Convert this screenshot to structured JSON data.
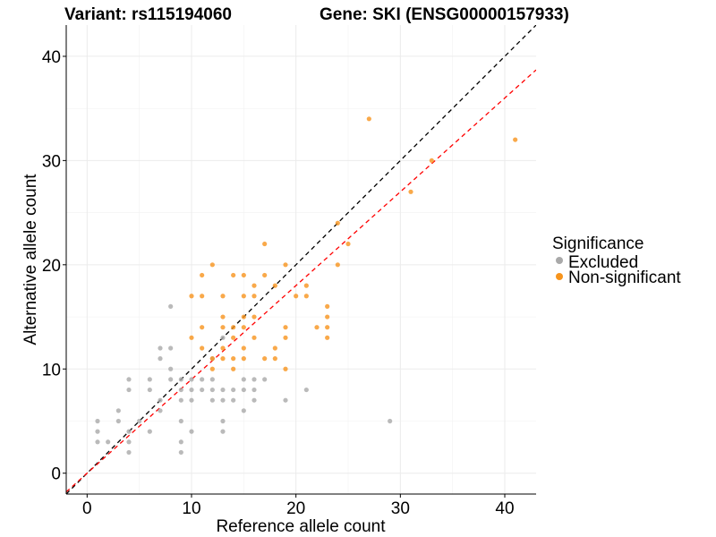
{
  "chart_data": {
    "type": "scatter",
    "title_left": "Variant: rs115194060",
    "title_right": "Gene: SKI (ENSG00000157933)",
    "xlabel": "Reference allele count",
    "ylabel": "Alternative allele count",
    "xlim": [
      -2,
      43
    ],
    "ylim": [
      -2,
      43
    ],
    "xticks": [
      0,
      10,
      20,
      30,
      40
    ],
    "yticks": [
      0,
      10,
      20,
      30,
      40
    ],
    "grid": true,
    "legend": {
      "title": "Significance",
      "placement": "right",
      "entries": [
        {
          "label": "Excluded",
          "color": "#a9a9a9"
        },
        {
          "label": "Non-significant",
          "color": "#f7941d"
        }
      ]
    },
    "reference_lines": [
      {
        "slope": 1.0,
        "intercept": 0,
        "color": "#000000",
        "style": "dashed"
      },
      {
        "slope": 0.9,
        "intercept": 0,
        "color": "#ff0000",
        "style": "dashed"
      }
    ],
    "series": [
      {
        "name": "Excluded",
        "color": "#a9a9a9",
        "points": [
          [
            1,
            3
          ],
          [
            1,
            4
          ],
          [
            1,
            5
          ],
          [
            2,
            3
          ],
          [
            3,
            5
          ],
          [
            3,
            6
          ],
          [
            4,
            2
          ],
          [
            4,
            3
          ],
          [
            4,
            4
          ],
          [
            4,
            8
          ],
          [
            4,
            9
          ],
          [
            5,
            5
          ],
          [
            6,
            4
          ],
          [
            6,
            8
          ],
          [
            6,
            9
          ],
          [
            7,
            6
          ],
          [
            7,
            7
          ],
          [
            7,
            11
          ],
          [
            7,
            12
          ],
          [
            8,
            9
          ],
          [
            8,
            10
          ],
          [
            8,
            12
          ],
          [
            8,
            16
          ],
          [
            9,
            2
          ],
          [
            9,
            3
          ],
          [
            9,
            5
          ],
          [
            9,
            7
          ],
          [
            9,
            8
          ],
          [
            9,
            9
          ],
          [
            10,
            4
          ],
          [
            10,
            7
          ],
          [
            10,
            8
          ],
          [
            10,
            9
          ],
          [
            11,
            8
          ],
          [
            11,
            9
          ],
          [
            12,
            7
          ],
          [
            12,
            8
          ],
          [
            12,
            9
          ],
          [
            12,
            11
          ],
          [
            13,
            4
          ],
          [
            13,
            5
          ],
          [
            13,
            7
          ],
          [
            13,
            8
          ],
          [
            13,
            13
          ],
          [
            14,
            7
          ],
          [
            14,
            8
          ],
          [
            15,
            6
          ],
          [
            15,
            8
          ],
          [
            15,
            9
          ],
          [
            16,
            7
          ],
          [
            16,
            8
          ],
          [
            16,
            9
          ],
          [
            17,
            9
          ],
          [
            19,
            7
          ],
          [
            21,
            8
          ],
          [
            29,
            5
          ]
        ]
      },
      {
        "name": "Non-significant",
        "color": "#f7941d",
        "points": [
          [
            10,
            13
          ],
          [
            10,
            17
          ],
          [
            11,
            12
          ],
          [
            11,
            14
          ],
          [
            11,
            17
          ],
          [
            11,
            19
          ],
          [
            12,
            10
          ],
          [
            12,
            11
          ],
          [
            12,
            20
          ],
          [
            13,
            11
          ],
          [
            13,
            12
          ],
          [
            13,
            14
          ],
          [
            13,
            15
          ],
          [
            13,
            17
          ],
          [
            14,
            10
          ],
          [
            14,
            11
          ],
          [
            14,
            13
          ],
          [
            14,
            14
          ],
          [
            14,
            19
          ],
          [
            15,
            11
          ],
          [
            15,
            12
          ],
          [
            15,
            14
          ],
          [
            15,
            15
          ],
          [
            15,
            17
          ],
          [
            15,
            19
          ],
          [
            16,
            13
          ],
          [
            16,
            15
          ],
          [
            16,
            17
          ],
          [
            16,
            18
          ],
          [
            17,
            11
          ],
          [
            17,
            19
          ],
          [
            17,
            22
          ],
          [
            18,
            11
          ],
          [
            18,
            12
          ],
          [
            18,
            18
          ],
          [
            19,
            10
          ],
          [
            19,
            13
          ],
          [
            19,
            14
          ],
          [
            19,
            20
          ],
          [
            20,
            17
          ],
          [
            21,
            17
          ],
          [
            21,
            18
          ],
          [
            22,
            14
          ],
          [
            23,
            13
          ],
          [
            23,
            14
          ],
          [
            23,
            15
          ],
          [
            23,
            16
          ],
          [
            24,
            20
          ],
          [
            24,
            24
          ],
          [
            25,
            22
          ],
          [
            27,
            34
          ],
          [
            31,
            27
          ],
          [
            33,
            30
          ],
          [
            41,
            32
          ]
        ]
      }
    ]
  }
}
